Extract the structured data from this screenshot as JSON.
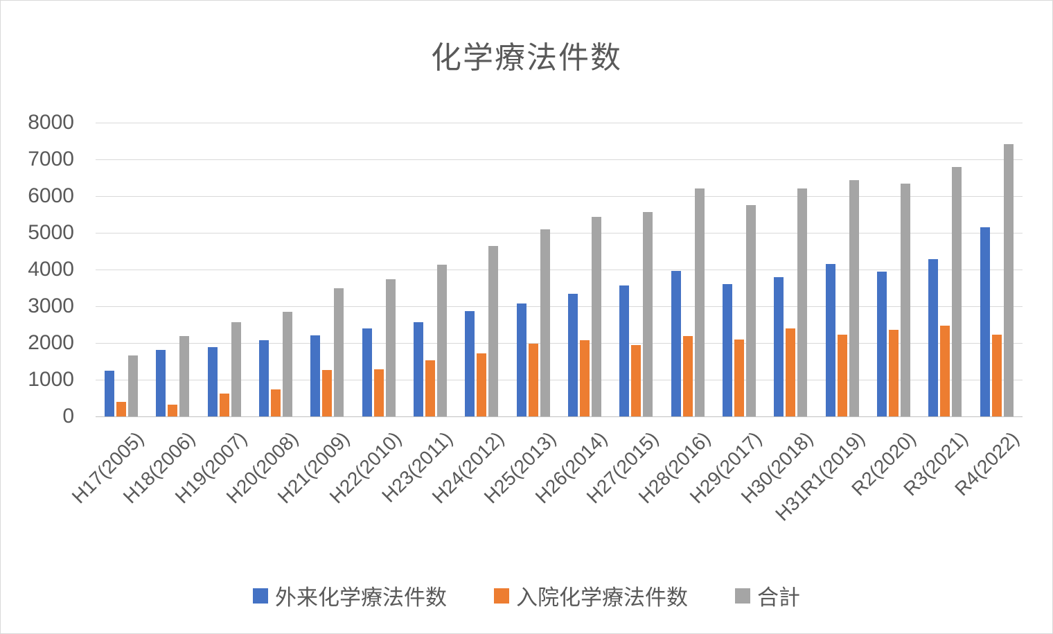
{
  "chart_data": {
    "type": "bar",
    "title": "化学療法件数",
    "categories": [
      "H17(2005)",
      "H18(2006)",
      "H19(2007)",
      "H20(2008)",
      "H21(2009)",
      "H22(2010)",
      "H23(2011)",
      "H24(2012)",
      "H25(2013)",
      "H26(2014)",
      "H27(2015)",
      "H28(2016)",
      "H29(2017)",
      "H30(2018)",
      "H31R1(2019)",
      "R2(2020)",
      "R3(2021)",
      "R4(2022)"
    ],
    "series": [
      {
        "name": "外来化学療法件数",
        "color": "#4472C4",
        "values": [
          1250,
          1810,
          1890,
          2070,
          2200,
          2400,
          2570,
          2870,
          3070,
          3340,
          3570,
          3960,
          3600,
          3790,
          4160,
          3940,
          4290,
          5150
        ]
      },
      {
        "name": "入院化学療法件数",
        "color": "#ED7D31",
        "values": [
          390,
          320,
          630,
          740,
          1260,
          1280,
          1530,
          1720,
          1980,
          2070,
          1940,
          2190,
          2090,
          2400,
          2230,
          2360,
          2480,
          2230
        ]
      },
      {
        "name": "合計",
        "color": "#A5A5A5",
        "values": [
          1670,
          2190,
          2560,
          2850,
          3500,
          3730,
          4140,
          4650,
          5100,
          5440,
          5570,
          6210,
          5750,
          6210,
          6430,
          6340,
          6800,
          7410
        ]
      }
    ],
    "xlabel": "",
    "ylabel": "",
    "ylim": [
      0,
      8000
    ],
    "y_ticks": [
      0,
      1000,
      2000,
      3000,
      4000,
      5000,
      6000,
      7000,
      8000
    ],
    "grid": true,
    "legend_position": "bottom"
  },
  "colors": {
    "title_text": "#595959",
    "axis_text": "#595959",
    "gridline": "#D9D9D9",
    "axis_line": "#BFBFBF",
    "background": "#FFFFFF",
    "border": "#D9D9D9"
  }
}
